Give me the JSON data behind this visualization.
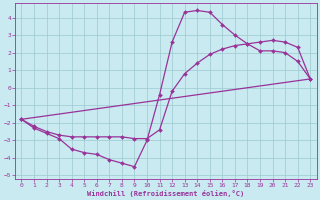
{
  "background_color": "#c8eaf0",
  "grid_color": "#b0d8e0",
  "line_color": "#993399",
  "marker": "D",
  "markersize": 2,
  "linewidth": 0.9,
  "xlabel": "Windchill (Refroidissement éolien,°C)",
  "xlim": [
    -0.5,
    23.5
  ],
  "ylim": [
    -5.2,
    4.8
  ],
  "yticks": [
    -5,
    -4,
    -3,
    -2,
    -1,
    0,
    1,
    2,
    3,
    4
  ],
  "xticks": [
    0,
    1,
    2,
    3,
    4,
    5,
    6,
    7,
    8,
    9,
    10,
    11,
    12,
    13,
    14,
    15,
    16,
    17,
    18,
    19,
    20,
    21,
    22,
    23
  ],
  "curve1_x": [
    0,
    1,
    2,
    3,
    4,
    5,
    6,
    7,
    8,
    9,
    10,
    11,
    12,
    13,
    14,
    15,
    16,
    17,
    18,
    19,
    20,
    21,
    22,
    23
  ],
  "curve1_y": [
    -1.8,
    -2.3,
    -2.6,
    -2.9,
    -3.5,
    -3.7,
    -3.8,
    -4.1,
    -4.3,
    -4.5,
    -3.0,
    -0.4,
    2.6,
    4.3,
    4.4,
    4.3,
    3.6,
    3.0,
    2.5,
    2.1,
    2.1,
    2.0,
    1.5,
    0.5
  ],
  "curve2_x": [
    0,
    1,
    2,
    3,
    4,
    5,
    6,
    7,
    8,
    9,
    10,
    11,
    12,
    13,
    14,
    15,
    16,
    17,
    18,
    19,
    20,
    21,
    22,
    23
  ],
  "curve2_y": [
    -1.8,
    -2.2,
    -2.5,
    -2.7,
    -2.8,
    -2.8,
    -2.8,
    -2.8,
    -2.8,
    -2.9,
    -2.9,
    -2.4,
    -0.2,
    0.8,
    1.4,
    1.9,
    2.2,
    2.4,
    2.5,
    2.6,
    2.7,
    2.6,
    2.3,
    0.5
  ],
  "curve3_x": [
    0,
    23
  ],
  "curve3_y": [
    -1.8,
    0.5
  ]
}
